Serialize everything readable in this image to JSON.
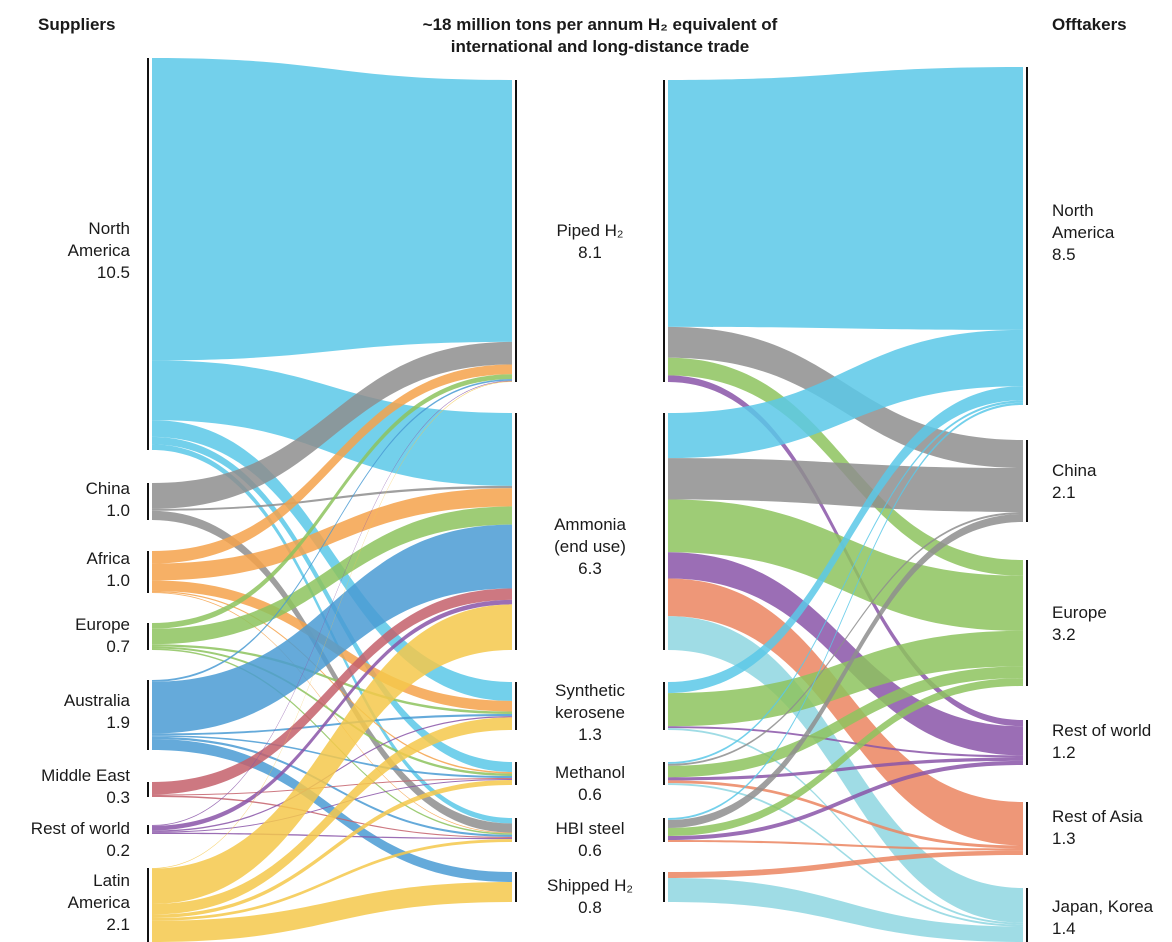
{
  "header": {
    "suppliers": "Suppliers",
    "title_line1": "~18 million tons per annum H₂ equivalent of",
    "title_line2": "international and long-distance trade",
    "offtakers": "Offtakers"
  },
  "suppliers": [
    {
      "id": "na",
      "name": [
        "North",
        "America"
      ],
      "value": "10.5"
    },
    {
      "id": "cn",
      "name": [
        "China"
      ],
      "value": "1.0"
    },
    {
      "id": "af",
      "name": [
        "Africa"
      ],
      "value": "1.0"
    },
    {
      "id": "eu",
      "name": [
        "Europe"
      ],
      "value": "0.7"
    },
    {
      "id": "au",
      "name": [
        "Australia"
      ],
      "value": "1.9"
    },
    {
      "id": "me",
      "name": [
        "Middle East"
      ],
      "value": "0.3"
    },
    {
      "id": "rw",
      "name": [
        "Rest of world"
      ],
      "value": "0.2"
    },
    {
      "id": "la",
      "name": [
        "Latin",
        "America"
      ],
      "value": "2.1"
    }
  ],
  "carriers": [
    {
      "id": "piped",
      "name": [
        "Piped H₂"
      ],
      "value": "8.1"
    },
    {
      "id": "ammonia",
      "name": [
        "Ammonia",
        "(end use)"
      ],
      "value": "6.3"
    },
    {
      "id": "kero",
      "name": [
        "Synthetic",
        "kerosene"
      ],
      "value": "1.3"
    },
    {
      "id": "meth",
      "name": [
        "Methanol"
      ],
      "value": "0.6"
    },
    {
      "id": "hbi",
      "name": [
        "HBI steel"
      ],
      "value": "0.6"
    },
    {
      "id": "ship",
      "name": [
        "Shipped H₂"
      ],
      "value": "0.8"
    }
  ],
  "offtakers": [
    {
      "id": "o_na",
      "name": [
        "North",
        "America"
      ],
      "value": "8.5"
    },
    {
      "id": "o_cn",
      "name": [
        "China"
      ],
      "value": "2.1"
    },
    {
      "id": "o_eu",
      "name": [
        "Europe"
      ],
      "value": "3.2"
    },
    {
      "id": "o_rw",
      "name": [
        "Rest of world"
      ],
      "value": "1.2"
    },
    {
      "id": "o_ra",
      "name": [
        "Rest of Asia"
      ],
      "value": "1.3"
    },
    {
      "id": "o_jk",
      "name": [
        "Japan, Korea"
      ],
      "value": "1.4"
    }
  ],
  "colors": {
    "na": "#5BC8E8",
    "cn": "#8E8E8E",
    "af": "#F5A24B",
    "eu": "#8DC35E",
    "au": "#4A9BD4",
    "me": "#C4606B",
    "rw": "#8A55A8",
    "la": "#F5C84B",
    "ammonia_offtake": "#8DC35E",
    "kero_offtake": "#8DC35E",
    "rw_offtake": "#8A55A8",
    "ra_offtake": "#EB8560",
    "jk_offtake": "#8ED6E0"
  },
  "flows_left": [
    {
      "src": "na",
      "dst": "piped",
      "value": 8.1
    },
    {
      "src": "na",
      "dst": "ammonia",
      "value": 1.6
    },
    {
      "src": "na",
      "dst": "kero",
      "value": 0.45
    },
    {
      "src": "na",
      "dst": "meth",
      "value": 0.2
    },
    {
      "src": "na",
      "dst": "hbi",
      "value": 0.15
    },
    {
      "src": "cn",
      "dst": "piped",
      "value": 0.7
    },
    {
      "src": "cn",
      "dst": "ammonia",
      "value": 0.05
    },
    {
      "src": "cn",
      "dst": "hbi",
      "value": 0.25
    },
    {
      "src": "af",
      "dst": "piped",
      "value": 0.3
    },
    {
      "src": "af",
      "dst": "ammonia",
      "value": 0.4
    },
    {
      "src": "af",
      "dst": "kero",
      "value": 0.25
    },
    {
      "src": "af",
      "dst": "meth",
      "value": 0.03
    },
    {
      "src": "af",
      "dst": "hbi",
      "value": 0.02
    },
    {
      "src": "eu",
      "dst": "piped",
      "value": 0.15
    },
    {
      "src": "eu",
      "dst": "ammonia",
      "value": 0.4
    },
    {
      "src": "eu",
      "dst": "kero",
      "value": 0.06
    },
    {
      "src": "eu",
      "dst": "meth",
      "value": 0.05
    },
    {
      "src": "eu",
      "dst": "hbi",
      "value": 0.04
    },
    {
      "src": "au",
      "dst": "piped",
      "value": 0.05
    },
    {
      "src": "au",
      "dst": "ammonia",
      "value": 1.4
    },
    {
      "src": "au",
      "dst": "kero",
      "value": 0.05
    },
    {
      "src": "au",
      "dst": "meth",
      "value": 0.04
    },
    {
      "src": "au",
      "dst": "hbi",
      "value": 0.06
    },
    {
      "src": "au",
      "dst": "ship",
      "value": 0.3
    },
    {
      "src": "me",
      "dst": "ammonia",
      "value": 0.25
    },
    {
      "src": "me",
      "dst": "meth",
      "value": 0.02
    },
    {
      "src": "me",
      "dst": "hbi",
      "value": 0.03
    },
    {
      "src": "rw",
      "dst": "piped",
      "value": 0.02
    },
    {
      "src": "rw",
      "dst": "ammonia",
      "value": 0.1
    },
    {
      "src": "rw",
      "dst": "kero",
      "value": 0.03
    },
    {
      "src": "rw",
      "dst": "meth",
      "value": 0.02
    },
    {
      "src": "rw",
      "dst": "hbi",
      "value": 0.03
    },
    {
      "src": "la",
      "dst": "piped",
      "value": 0.02
    },
    {
      "src": "la",
      "dst": "ammonia",
      "value": 1.0
    },
    {
      "src": "la",
      "dst": "kero",
      "value": 0.3
    },
    {
      "src": "la",
      "dst": "meth",
      "value": 0.1
    },
    {
      "src": "la",
      "dst": "hbi",
      "value": 0.08
    },
    {
      "src": "la",
      "dst": "ship",
      "value": 0.6
    }
  ],
  "flows_right": [
    {
      "src": "piped",
      "dst": "o_na",
      "value": 5.6,
      "color": "na"
    },
    {
      "src": "piped",
      "dst": "o_cn",
      "value": 0.7,
      "color": "cn"
    },
    {
      "src": "piped",
      "dst": "o_eu",
      "value": 0.4,
      "color": "eu"
    },
    {
      "src": "piped",
      "dst": "o_rw",
      "value": 0.15,
      "color": "rw"
    },
    {
      "src": "ammonia",
      "dst": "o_na",
      "value": 1.2,
      "color": "na"
    },
    {
      "src": "ammonia",
      "dst": "o_cn",
      "value": 1.1,
      "color": "cn"
    },
    {
      "src": "ammonia",
      "dst": "o_eu",
      "value": 1.4,
      "color": "ammonia_offtake"
    },
    {
      "src": "ammonia",
      "dst": "o_rw",
      "value": 0.7,
      "color": "rw_offtake"
    },
    {
      "src": "ammonia",
      "dst": "o_ra",
      "value": 1.0,
      "color": "ra_offtake"
    },
    {
      "src": "ammonia",
      "dst": "o_jk",
      "value": 0.9,
      "color": "jk_offtake"
    },
    {
      "src": "kero",
      "dst": "o_na",
      "value": 0.3,
      "color": "na"
    },
    {
      "src": "kero",
      "dst": "o_eu",
      "value": 0.9,
      "color": "kero_offtake"
    },
    {
      "src": "kero",
      "dst": "o_rw",
      "value": 0.05,
      "color": "rw_offtake"
    },
    {
      "src": "kero",
      "dst": "o_jk",
      "value": 0.05,
      "color": "jk_offtake"
    },
    {
      "src": "meth",
      "dst": "o_na",
      "value": 0.05,
      "color": "na"
    },
    {
      "src": "meth",
      "dst": "o_cn",
      "value": 0.05,
      "color": "cn"
    },
    {
      "src": "meth",
      "dst": "o_eu",
      "value": 0.3,
      "color": "eu"
    },
    {
      "src": "meth",
      "dst": "o_rw",
      "value": 0.08,
      "color": "rw_offtake"
    },
    {
      "src": "meth",
      "dst": "o_ra",
      "value": 0.07,
      "color": "ra_offtake"
    },
    {
      "src": "meth",
      "dst": "o_jk",
      "value": 0.05,
      "color": "jk_offtake"
    },
    {
      "src": "hbi",
      "dst": "o_na",
      "value": 0.05,
      "color": "na"
    },
    {
      "src": "hbi",
      "dst": "o_cn",
      "value": 0.2,
      "color": "cn"
    },
    {
      "src": "hbi",
      "dst": "o_eu",
      "value": 0.2,
      "color": "eu"
    },
    {
      "src": "hbi",
      "dst": "o_rw",
      "value": 0.1,
      "color": "rw_offtake"
    },
    {
      "src": "hbi",
      "dst": "o_ra",
      "value": 0.05,
      "color": "ra_offtake"
    },
    {
      "src": "ship",
      "dst": "o_ra",
      "value": 0.1,
      "color": "ra_offtake"
    },
    {
      "src": "ship",
      "dst": "o_jk",
      "value": 0.4,
      "color": "jk_offtake"
    }
  ]
}
